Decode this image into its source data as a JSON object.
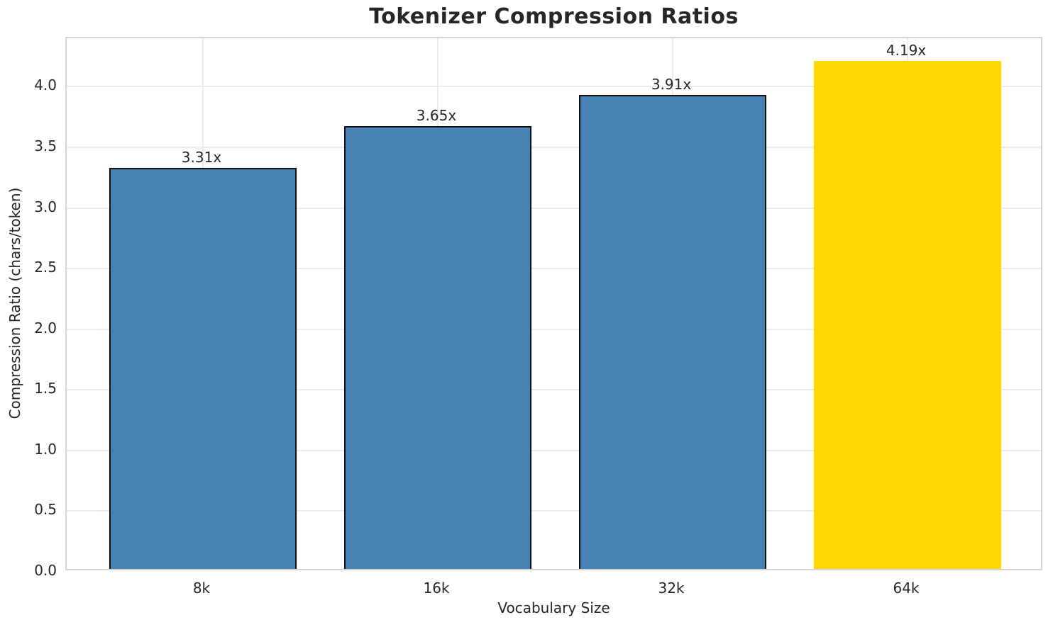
{
  "chart_data": {
    "type": "bar",
    "title": "Tokenizer Compression Ratios",
    "xlabel": "Vocabulary Size",
    "ylabel": "Compression Ratio (chars/token)",
    "categories": [
      "8k",
      "16k",
      "32k",
      "64k"
    ],
    "values": [
      3.31,
      3.65,
      3.91,
      4.19
    ],
    "bar_labels": [
      "3.31x",
      "3.65x",
      "3.91x",
      "4.19x"
    ],
    "bar_colors": [
      "#4682B4",
      "#4682B4",
      "#4682B4",
      "#FFD700"
    ],
    "bar_edge_colors": [
      "#111111",
      "#111111",
      "#111111",
      "none"
    ],
    "highlight_index": 3,
    "ylim": [
      0,
      4.4
    ],
    "yticks": [
      "0.0",
      "0.5",
      "1.0",
      "1.5",
      "2.0",
      "2.5",
      "3.0",
      "3.5",
      "4.0"
    ],
    "grid": true,
    "legend_position": "none"
  },
  "style": {
    "grid_color": "#ececec",
    "spine_color": "#d4d4d4",
    "text_color": "#262626"
  }
}
